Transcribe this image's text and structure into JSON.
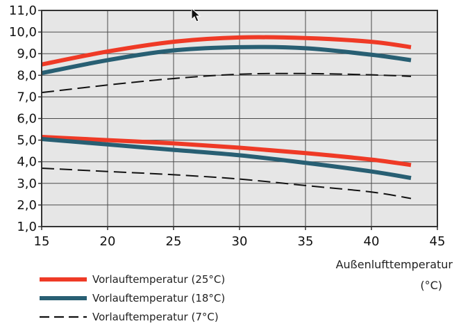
{
  "chart_data": {
    "type": "line",
    "title": "",
    "xlabel": "Außenlufttemperatur",
    "xunit": "(°C)",
    "ylabel": "",
    "xlim": [
      15,
      45
    ],
    "ylim": [
      1,
      11
    ],
    "x_ticks": [
      15,
      20,
      25,
      30,
      35,
      40,
      45
    ],
    "y_ticks": [
      "1,0",
      "2,0",
      "3,0",
      "4,0",
      "5,0",
      "6,0",
      "7,0",
      "8,0",
      "9,0",
      "10,0",
      "11,0"
    ],
    "grid": true,
    "legend_position": "bottom-left",
    "plot_background": "#e6e6e6",
    "series": [
      {
        "name": "Vorlauftemperatur (25°C)",
        "color": "#ef3a26",
        "style": "solid-thick",
        "group": "upper",
        "x": [
          15,
          20,
          25,
          30,
          35,
          40,
          43
        ],
        "y": [
          8.5,
          9.1,
          9.55,
          9.75,
          9.72,
          9.55,
          9.3
        ]
      },
      {
        "name": "Vorlauftemperatur (18°C)",
        "color": "#285f73",
        "style": "solid-thick",
        "group": "upper",
        "x": [
          15,
          20,
          25,
          30,
          35,
          40,
          43
        ],
        "y": [
          8.1,
          8.7,
          9.15,
          9.3,
          9.25,
          8.95,
          8.7
        ]
      },
      {
        "name": "Vorlauftemperatur (7°C)",
        "color": "#111111",
        "style": "dashed",
        "group": "upper",
        "x": [
          15,
          20,
          25,
          30,
          35,
          40,
          43
        ],
        "y": [
          7.2,
          7.55,
          7.85,
          8.05,
          8.08,
          8.02,
          7.95
        ]
      },
      {
        "name": "Vorlauftemperatur (25°C)",
        "color": "#ef3a26",
        "style": "solid-thick",
        "group": "lower",
        "x": [
          15,
          20,
          25,
          30,
          35,
          40,
          43
        ],
        "y": [
          5.15,
          5.0,
          4.85,
          4.65,
          4.4,
          4.1,
          3.85
        ]
      },
      {
        "name": "Vorlauftemperatur (18°C)",
        "color": "#285f73",
        "style": "solid-thick",
        "group": "lower",
        "x": [
          15,
          20,
          25,
          30,
          35,
          40,
          43
        ],
        "y": [
          5.05,
          4.8,
          4.55,
          4.3,
          3.95,
          3.55,
          3.25
        ]
      },
      {
        "name": "Vorlauftemperatur (7°C)",
        "color": "#111111",
        "style": "dashed",
        "group": "lower",
        "x": [
          15,
          20,
          25,
          30,
          35,
          40,
          43
        ],
        "y": [
          3.7,
          3.55,
          3.4,
          3.2,
          2.9,
          2.6,
          2.3
        ]
      }
    ],
    "legend": [
      {
        "label": "Vorlauftemperatur (25°C)",
        "color": "#ef3a26",
        "style": "solid-thick"
      },
      {
        "label": "Vorlauftemperatur (18°C)",
        "color": "#285f73",
        "style": "solid-thick"
      },
      {
        "label": "Vorlauftemperatur (7°C)",
        "color": "#111111",
        "style": "dashed"
      }
    ]
  }
}
